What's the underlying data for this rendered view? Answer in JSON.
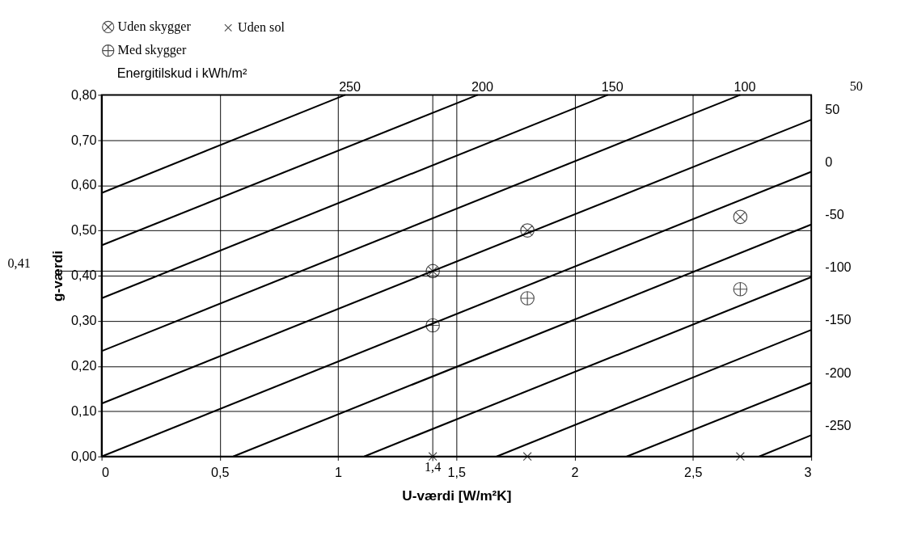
{
  "chart_data": {
    "type": "line",
    "xlabel": "U-værdi [W/m²K]",
    "ylabel": "g-værdi",
    "xlim": [
      0,
      3
    ],
    "ylim": [
      0,
      0.8
    ],
    "xticks": [
      {
        "value": 0,
        "label": "0"
      },
      {
        "value": 0.5,
        "label": "0,5"
      },
      {
        "value": 1,
        "label": "1"
      },
      {
        "value": 1.5,
        "label": "1,5"
      },
      {
        "value": 2,
        "label": "2"
      },
      {
        "value": 2.5,
        "label": "2,5"
      },
      {
        "value": 3,
        "label": "3"
      }
    ],
    "yticks": [
      {
        "value": 0,
        "label": "0,00"
      },
      {
        "value": 0.1,
        "label": "0,10"
      },
      {
        "value": 0.2,
        "label": "0,20"
      },
      {
        "value": 0.3,
        "label": "0,30"
      },
      {
        "value": 0.4,
        "label": "0,40"
      },
      {
        "value": 0.5,
        "label": "0,50"
      },
      {
        "value": 0.6,
        "label": "0,60"
      },
      {
        "value": 0.7,
        "label": "0,70"
      },
      {
        "value": 0.8,
        "label": "0,80"
      }
    ],
    "grid": true,
    "legend": "top",
    "line_style": "solid",
    "series": [
      {
        "name": "250",
        "color": "#000000",
        "x": [
          0,
          1.03
        ],
        "values": [
          0.583,
          0.8
        ]
      },
      {
        "name": "200",
        "color": "#000000",
        "x": [
          0,
          1.59
        ],
        "values": [
          0.467,
          0.8
        ]
      },
      {
        "name": "150",
        "color": "#000000",
        "x": [
          0,
          2.14
        ],
        "values": [
          0.35,
          0.8
        ]
      },
      {
        "name": "100",
        "color": "#000000",
        "x": [
          0,
          2.7
        ],
        "values": [
          0.233,
          0.8
        ]
      },
      {
        "name": "50",
        "color": "#000000",
        "x": [
          0,
          3
        ],
        "values": [
          0.117,
          0.745
        ]
      },
      {
        "name": "0",
        "color": "#000000",
        "x": [
          0,
          3
        ],
        "values": [
          0,
          0.63
        ]
      },
      {
        "name": "-50",
        "color": "#000000",
        "x": [
          0.556,
          3
        ],
        "values": [
          0,
          0.513
        ]
      },
      {
        "name": "-100",
        "color": "#000000",
        "x": [
          1.11,
          3
        ],
        "values": [
          0,
          0.397
        ]
      },
      {
        "name": "-150",
        "color": "#000000",
        "x": [
          1.67,
          3
        ],
        "values": [
          0,
          0.28
        ]
      },
      {
        "name": "-200",
        "color": "#000000",
        "x": [
          2.22,
          3
        ],
        "values": [
          0,
          0.163
        ]
      },
      {
        "name": "-250",
        "color": "#000000",
        "x": [
          2.78,
          3
        ],
        "values": [
          0,
          0.047
        ]
      },
      {
        "name": "Uden skygger",
        "type": "scatter",
        "color": "#000000",
        "x": [
          1.4,
          1.8,
          2.7
        ],
        "values": [
          0.41,
          0.5,
          0.53
        ]
      },
      {
        "name": "Uden sol",
        "type": "scatter",
        "color": "#000000",
        "x": [
          1.4,
          1.8,
          2.7
        ],
        "values": [
          0,
          0,
          0
        ]
      },
      {
        "name": "Med skygger",
        "type": "scatter",
        "color": "#000000",
        "x": [
          1.4,
          1.8,
          2.7
        ],
        "values": [
          0.29,
          0.35,
          0.37
        ]
      }
    ],
    "ref_lines": [
      {
        "axis": "y",
        "value": 0.41,
        "label": "0,41",
        "color": "#000000"
      },
      {
        "axis": "x",
        "value": 1.4,
        "label": "1,4",
        "color": "#000000"
      }
    ],
    "annotations": [
      "Energitilskud i kWh/m²",
      "50"
    ]
  }
}
